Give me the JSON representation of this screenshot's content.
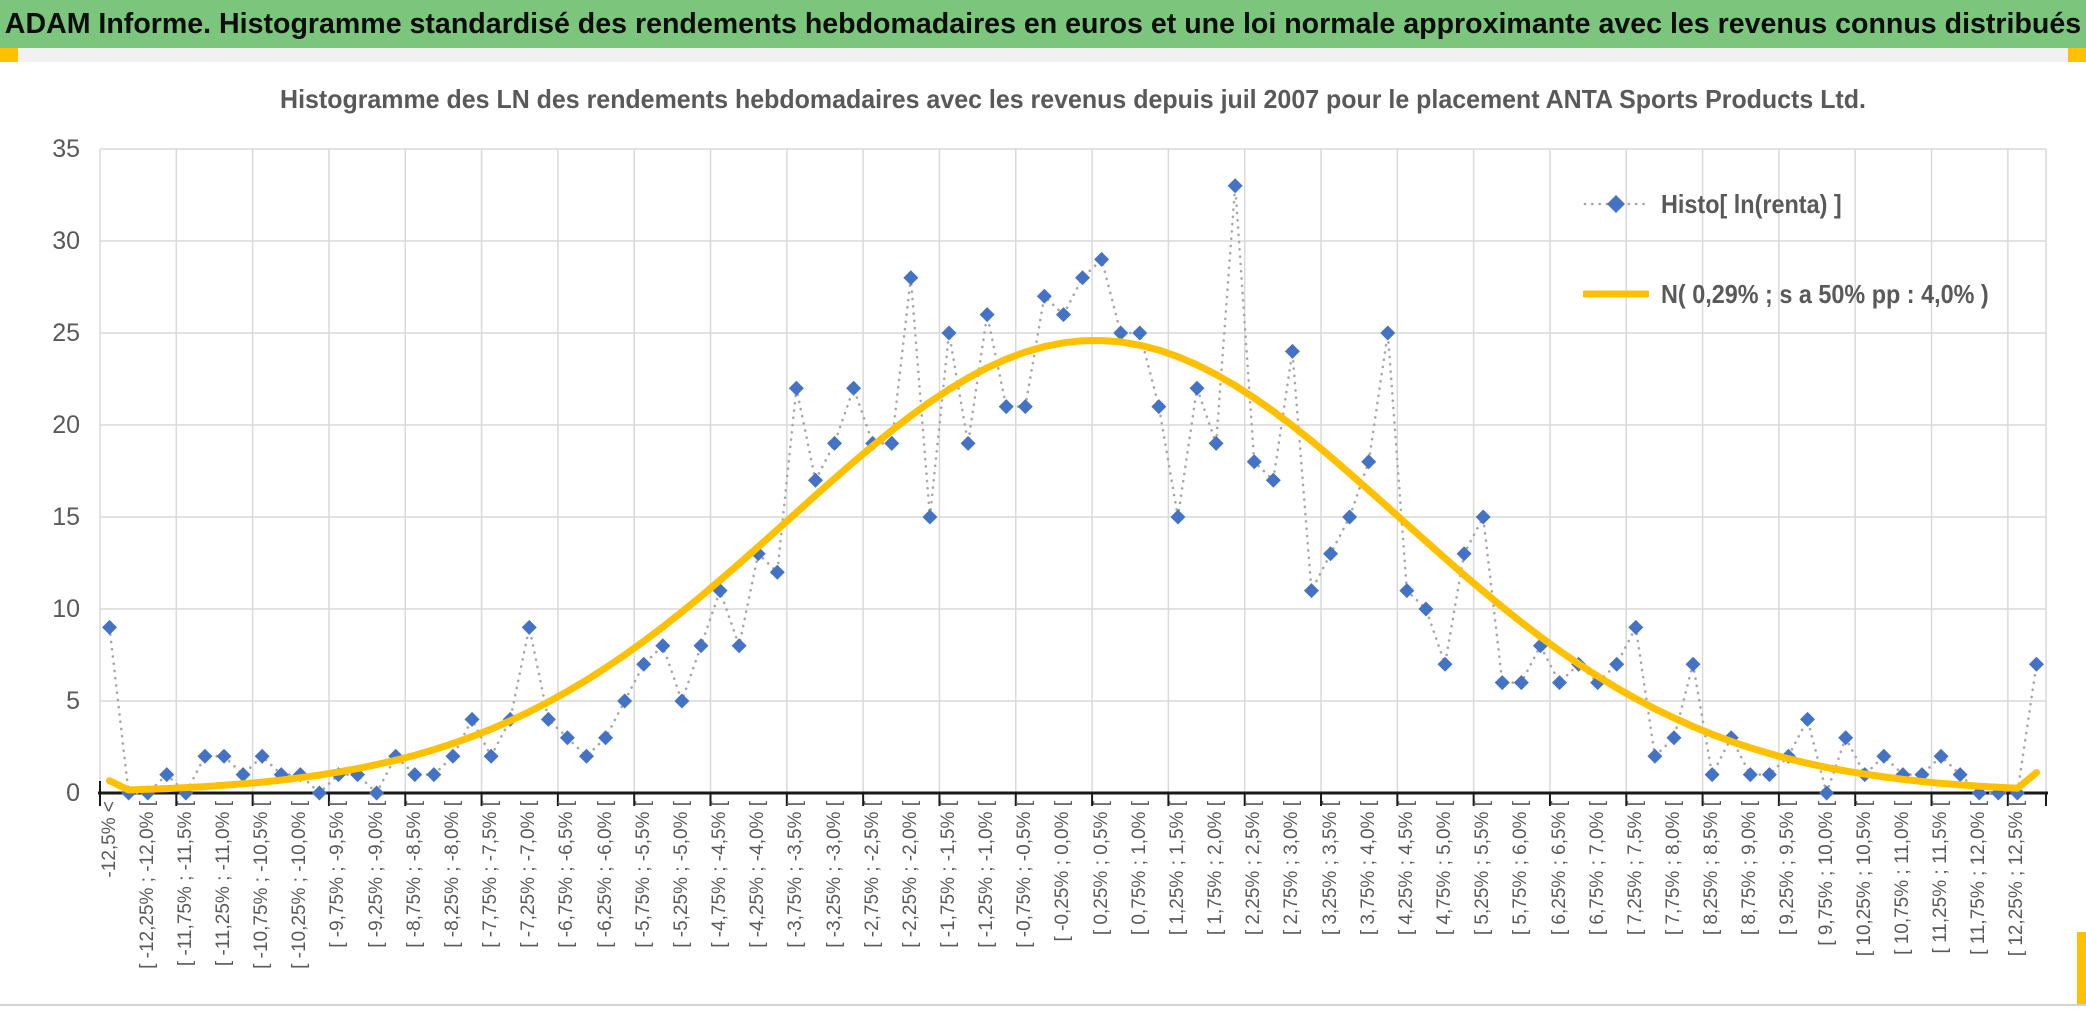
{
  "header": {
    "title": "ADAM Informe. Histogramme standardisé des rendements hebdomadaires en euros et une loi normale approximante avec les revenus connus distribués"
  },
  "chart_data": {
    "type": "line",
    "title": "Histogramme des LN des rendements hebdomadaires avec les revenus depuis juil 2007 pour le placement ANTA Sports Products Ltd.",
    "xlabel": "",
    "ylabel": "",
    "ylim": [
      0,
      35
    ],
    "y_ticks": [
      0,
      5,
      10,
      15,
      20,
      25,
      30,
      35
    ],
    "grid": true,
    "legend_position": "inside-right",
    "num_categories": 102,
    "x_labels_note": "bins of 0,25% wide; a label is shown on every second bin (even category indices 0,2,...,100)",
    "x_labels": [
      "-12,5% <",
      "[ -12,25% ; -12,0% [",
      "[ -11,75% ; -11,5% [",
      "[ -11,25% ; -11,0% [",
      "[ -10,75% ; -10,5% [",
      "[ -10,25% ; -10,0% [",
      "[ -9,75% ; -9,5% [",
      "[ -9,25% ; -9,0% [",
      "[ -8,75% ; -8,5% [",
      "[ -8,25% ; -8,0% [",
      "[ -7,75% ; -7,5% [",
      "[ -7,25% ; -7,0% [",
      "[ -6,75% ; -6,5% [",
      "[ -6,25% ; -6,0% [",
      "[ -5,75% ; -5,5% [",
      "[ -5,25% ; -5,0% [",
      "[ -4,75% ; -4,5% [",
      "[ -4,25% ; -4,0% [",
      "[ -3,75% ; -3,5% [",
      "[ -3,25% ; -3,0% [",
      "[ -2,75% ; -2,5% [",
      "[ -2,25% ; -2,0% [",
      "[ -1,75% ; -1,5% [",
      "[ -1,25% ; -1,0% [",
      "[ -0,75% ; -0,5% [",
      "[ -0,25% ; 0,0% [",
      "[ 0,25% ; 0,5% [",
      "[ 0,75% ; 1,0% [",
      "[ 1,25% ; 1,5% [",
      "[ 1,75% ; 2,0% [",
      "[ 2,25% ; 2,5% [",
      "[ 2,75% ; 3,0% [",
      "[ 3,25% ; 3,5% [",
      "[ 3,75% ; 4,0% [",
      "[ 4,25% ; 4,5% [",
      "[ 4,75% ; 5,0% [",
      "[ 5,25% ; 5,5% [",
      "[ 5,75% ; 6,0% [",
      "[ 6,25% ; 6,5% [",
      "[ 6,75% ; 7,0% [",
      "[ 7,25% ; 7,5% [",
      "[ 7,75% ; 8,0% [",
      "[ 8,25% ; 8,5% [",
      "[ 8,75% ; 9,0% [",
      "[ 9,25% ; 9,5% [",
      "[ 9,75% ; 10,0% [",
      "[ 10,25% ; 10,5% [",
      "[ 10,75% ; 11,0% [",
      "[ 11,25% ; 11,5% [",
      "[ 11,75% ; 12,0% [",
      "[ 12,25% ; 12,5% ["
    ],
    "series": [
      {
        "name": "Histo[ ln(renta) ]",
        "type": "scatter",
        "marker": "diamond",
        "marker_color": "#4472C4",
        "connector": "dotted",
        "connector_color": "#A6A6A6",
        "values": [
          9,
          0,
          0,
          1,
          0,
          2,
          2,
          1,
          2,
          1,
          1,
          0,
          1,
          1,
          0,
          2,
          1,
          1,
          2,
          4,
          2,
          4,
          9,
          4,
          3,
          2,
          3,
          5,
          7,
          8,
          5,
          8,
          11,
          8,
          13,
          12,
          22,
          17,
          19,
          22,
          19,
          19,
          28,
          15,
          25,
          19,
          26,
          21,
          21,
          27,
          26,
          28,
          29,
          25,
          25,
          21,
          15,
          22,
          19,
          33,
          18,
          17,
          24,
          11,
          13,
          15,
          18,
          25,
          11,
          10,
          7,
          13,
          15,
          6,
          6,
          8,
          6,
          7,
          6,
          7,
          9,
          2,
          3,
          7,
          1,
          3,
          1,
          1,
          2,
          4,
          0,
          3,
          1,
          2,
          1,
          1,
          2,
          1,
          0,
          0,
          0,
          7
        ]
      },
      {
        "name": "N( 0,29% ; s a 50% pp : 4,0% )",
        "type": "line",
        "color": "#FFC000",
        "normal": {
          "mean_pct_label": "0,29%",
          "sd_pct_label": "4,0%",
          "peak": 24.6,
          "center_cat": 51.66,
          "sigma_cats": 16,
          "left_tail_value": 0.67,
          "right_tail_value": 1.11
        }
      }
    ]
  },
  "colors": {
    "banner_green": "#7CC57D",
    "accent_orange": "#FFC000",
    "marker_blue": "#4472C4",
    "curve_gold": "#FFC000",
    "dotted_gray": "#A6A6A6",
    "gridline": "#D9D9D9",
    "text_gray": "#595959",
    "axis_black": "#1A1A1A"
  }
}
